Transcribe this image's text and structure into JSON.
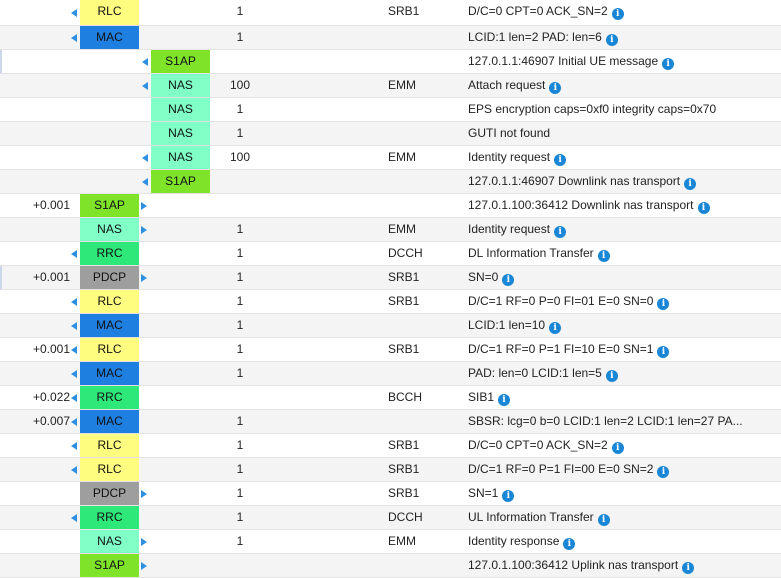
{
  "colors": {
    "RLC": "#fffd80",
    "MAC": "#1e7fe0",
    "S1AP": "#7fe32a",
    "NAS": "#80ffc6",
    "RRC": "#2ee87a",
    "PDCP": "#9e9e9e",
    "info_icon": "#1a86d6"
  },
  "icons": {
    "direction": "blue-triangle-arrow-icon",
    "info": "info-icon"
  },
  "rows": [
    {
      "time": "",
      "layer": "RLC",
      "col": 1,
      "arrow": "left",
      "count": "1",
      "chan": "SRB1",
      "msg": "D/C=0 CPT=0 ACK_SN=2",
      "info": true
    },
    {
      "time": "",
      "layer": "MAC",
      "col": 1,
      "arrow": "left",
      "count": "1",
      "chan": "",
      "msg": "LCID:1 len=2 PAD: len=6",
      "info": true
    },
    {
      "time": "",
      "layer": "S1AP",
      "col": 2,
      "arrow": "left",
      "count": "",
      "chan": "",
      "msg": "127.0.1.1:46907 Initial UE message",
      "info": true,
      "selected": true
    },
    {
      "time": "",
      "layer": "NAS",
      "col": 2,
      "arrow": "left",
      "count": "100",
      "chan": "EMM",
      "msg": "Attach request",
      "info": true
    },
    {
      "time": "",
      "layer": "NAS",
      "col": 2,
      "arrow": "",
      "count": "1",
      "chan": "",
      "msg": "EPS encryption caps=0xf0 integrity caps=0x70",
      "info": false
    },
    {
      "time": "",
      "layer": "NAS",
      "col": 2,
      "arrow": "",
      "count": "1",
      "chan": "",
      "msg": "GUTI not found",
      "info": false
    },
    {
      "time": "",
      "layer": "NAS",
      "col": 2,
      "arrow": "left",
      "count": "100",
      "chan": "EMM",
      "msg": "Identity request",
      "info": true
    },
    {
      "time": "",
      "layer": "S1AP",
      "col": 2,
      "arrow": "left",
      "count": "",
      "chan": "",
      "msg": "127.0.1.1:46907 Downlink nas transport",
      "info": true
    },
    {
      "time": "+0.001",
      "layer": "S1AP",
      "col": 1,
      "arrow": "right",
      "count": "",
      "chan": "",
      "msg": "127.0.1.100:36412 Downlink nas transport",
      "info": true
    },
    {
      "time": "",
      "layer": "NAS",
      "col": 1,
      "arrow": "right",
      "count": "1",
      "chan": "EMM",
      "msg": "Identity request",
      "info": true
    },
    {
      "time": "",
      "layer": "RRC",
      "col": 1,
      "arrow": "left",
      "count": "1",
      "chan": "DCCH",
      "msg": "DL Information Transfer",
      "info": true
    },
    {
      "time": "+0.001",
      "layer": "PDCP",
      "col": 1,
      "arrow": "right",
      "count": "1",
      "chan": "SRB1",
      "msg": "SN=0",
      "info": true,
      "selected": true
    },
    {
      "time": "",
      "layer": "RLC",
      "col": 1,
      "arrow": "left",
      "count": "1",
      "chan": "SRB1",
      "msg": "D/C=1 RF=0 P=0 FI=01 E=0 SN=0",
      "info": true
    },
    {
      "time": "",
      "layer": "MAC",
      "col": 1,
      "arrow": "left",
      "count": "1",
      "chan": "",
      "msg": "LCID:1 len=10",
      "info": true
    },
    {
      "time": "+0.001",
      "layer": "RLC",
      "col": 1,
      "arrow": "left",
      "count": "1",
      "chan": "SRB1",
      "msg": "D/C=1 RF=0 P=1 FI=10 E=0 SN=1",
      "info": true
    },
    {
      "time": "",
      "layer": "MAC",
      "col": 1,
      "arrow": "left",
      "count": "1",
      "chan": "",
      "msg": "PAD: len=0 LCID:1 len=5",
      "info": true
    },
    {
      "time": "+0.022",
      "layer": "RRC",
      "col": 1,
      "arrow": "left",
      "count": "",
      "chan": "BCCH",
      "msg": "SIB1",
      "info": true
    },
    {
      "time": "+0.007",
      "layer": "MAC",
      "col": 1,
      "arrow": "left",
      "count": "1",
      "chan": "",
      "msg": "SBSR: lcg=0 b=0 LCID:1 len=2 LCID:1 len=27 PA...",
      "info": false
    },
    {
      "time": "",
      "layer": "RLC",
      "col": 1,
      "arrow": "left",
      "count": "1",
      "chan": "SRB1",
      "msg": "D/C=0 CPT=0 ACK_SN=2",
      "info": true
    },
    {
      "time": "",
      "layer": "RLC",
      "col": 1,
      "arrow": "left",
      "count": "1",
      "chan": "SRB1",
      "msg": "D/C=1 RF=0 P=1 FI=00 E=0 SN=2",
      "info": true
    },
    {
      "time": "",
      "layer": "PDCP",
      "col": 1,
      "arrow": "right",
      "count": "1",
      "chan": "SRB1",
      "msg": "SN=1",
      "info": true
    },
    {
      "time": "",
      "layer": "RRC",
      "col": 1,
      "arrow": "left",
      "count": "1",
      "chan": "DCCH",
      "msg": "UL Information Transfer",
      "info": true
    },
    {
      "time": "",
      "layer": "NAS",
      "col": 1,
      "arrow": "right",
      "count": "1",
      "chan": "EMM",
      "msg": "Identity response",
      "info": true
    },
    {
      "time": "",
      "layer": "S1AP",
      "col": 1,
      "arrow": "right",
      "count": "",
      "chan": "",
      "msg": "127.0.1.100:36412 Uplink nas transport",
      "info": true
    }
  ]
}
